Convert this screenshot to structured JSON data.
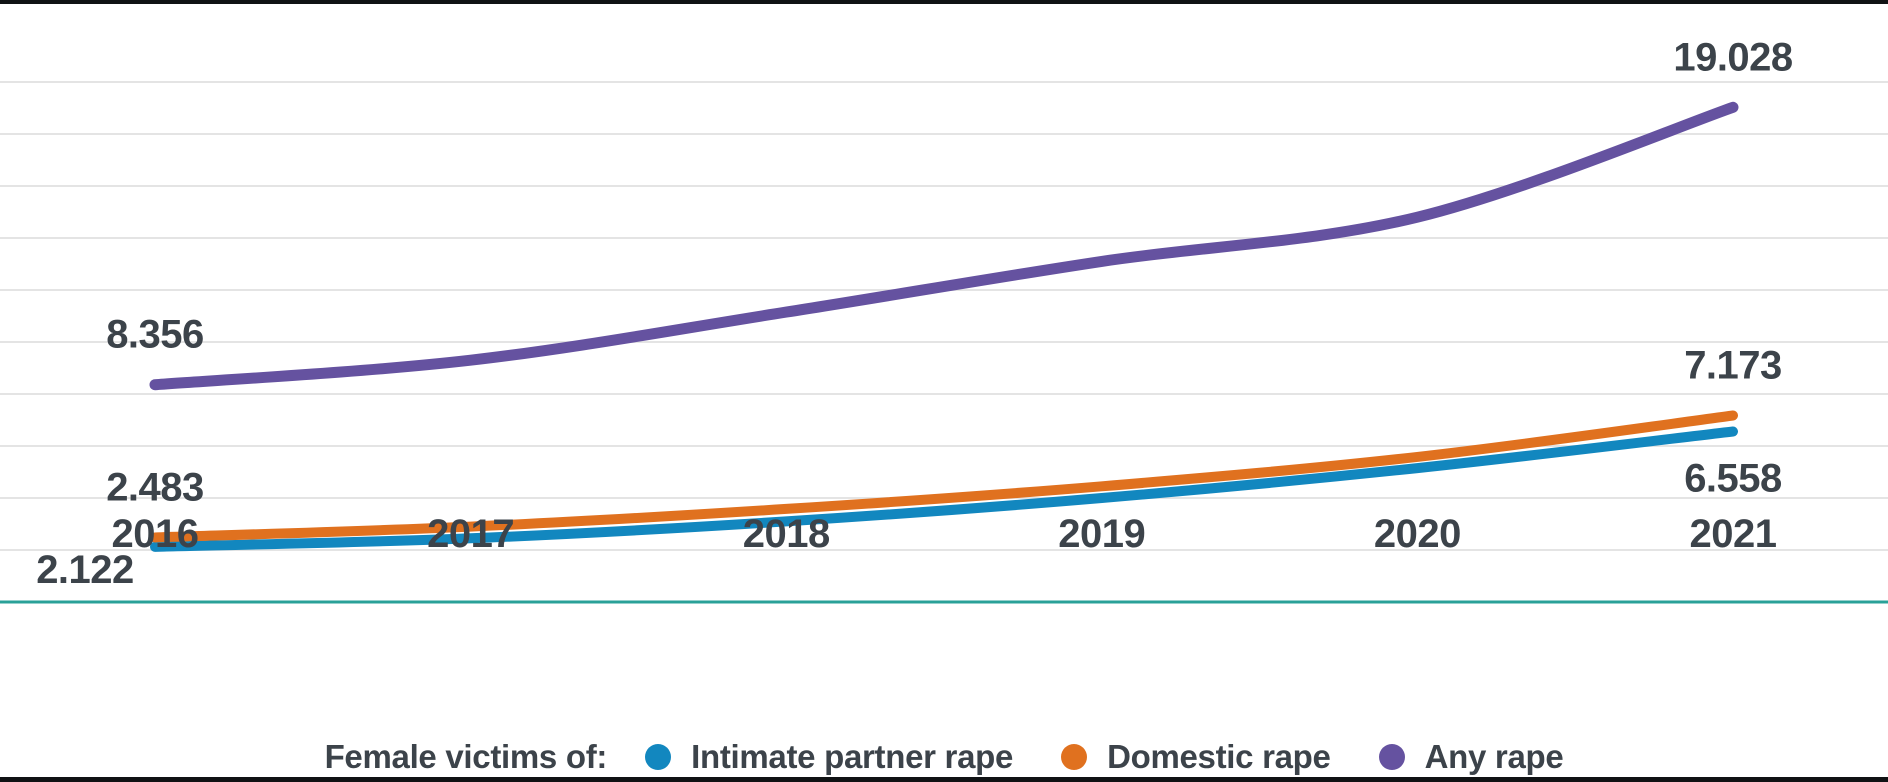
{
  "chart_data": {
    "type": "line",
    "legend_title": "Female victims of:",
    "legend_position": "bottom-center",
    "categories": [
      "2016",
      "2017",
      "2018",
      "2019",
      "2020",
      "2021"
    ],
    "series": [
      {
        "name": "Intimate partner rape",
        "color": "#1287bf",
        "values": [
          2122,
          2450,
          3100,
          4000,
          5150,
          6558
        ],
        "data_labels": {
          "start": "2.122",
          "end": "6.558"
        },
        "label_placement": {
          "start": "below-left",
          "end": "below"
        }
      },
      {
        "name": "Domestic rape",
        "color": "#e0711f",
        "values": [
          2483,
          2900,
          3580,
          4450,
          5580,
          7173
        ],
        "data_labels": {
          "start": "2.483",
          "end": "7.173"
        },
        "label_placement": {
          "start": "above",
          "end": "above"
        }
      },
      {
        "name": "Any rape",
        "color": "#6552a0",
        "values": [
          8356,
          9300,
          11150,
          13100,
          14800,
          19028
        ],
        "data_labels": {
          "start": "8.356",
          "end": "19.028"
        },
        "label_placement": {
          "start": "above",
          "end": "above"
        }
      }
    ],
    "ylim": [
      0,
      21000
    ],
    "grid_step": 2000,
    "grid_max": 20000,
    "grid_on": true,
    "smoothing": "spline",
    "colors": {
      "gridline": "#e4e4e4",
      "baseline": "#2aa198",
      "text": "#3c434a",
      "frame_edge": "#101214"
    }
  }
}
